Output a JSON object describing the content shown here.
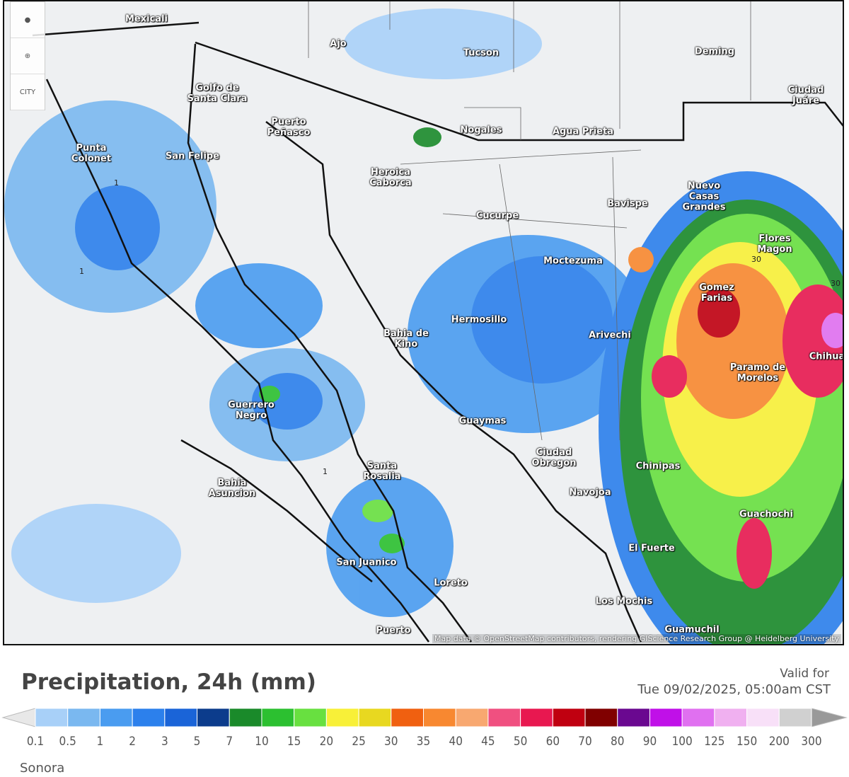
{
  "map": {
    "cities": [
      "Mexicali",
      "Ajo",
      "Tucson",
      "Deming",
      "Ciudad Juáre",
      "Golfo de Santa Clara",
      "Puerto Peñasco",
      "Nogales",
      "Agua Prieta",
      "Punta Colonet",
      "San Felipe",
      "Heroica Caborca",
      "Nuevo Casas Grandes",
      "Bavispe",
      "Cucurpe",
      "Flores Magon",
      "Moctezuma",
      "Gomez Farias",
      "Hermosillo",
      "Bahia de Kino",
      "Arivechi",
      "Chihua",
      "Paramo de Morelos",
      "Guerrero Negro",
      "Guaymas",
      "Ciudad Obregon",
      "Chinipas",
      "Santa Rosalia",
      "Bahia Asuncion",
      "Navojoa",
      "Guachochi",
      "El Fuerte",
      "San Juanico",
      "Loreto",
      "Los Mochis",
      "Puerto",
      "Guamuchil"
    ],
    "contour_labels": [
      "1",
      "1",
      "1",
      "30",
      "30"
    ],
    "city_button": "CITY",
    "attribution": "Map data © OpenStreetMap contributors, rendering GIScience Research Group @ Heidelberg University"
  },
  "legend": {
    "title": "Precipitation, 24h (mm)",
    "valid_label": "Valid for",
    "valid_time": "Tue 09/02/2025, 05:00am CST",
    "ticks": [
      0.1,
      0.5,
      1,
      2,
      3,
      5,
      7,
      10,
      15,
      20,
      25,
      30,
      35,
      40,
      45,
      50,
      60,
      70,
      80,
      90,
      100,
      125,
      150,
      200,
      300
    ],
    "colors": [
      "#a8d0f8",
      "#7ab8f0",
      "#4a9cf0",
      "#2c80ec",
      "#1a64d8",
      "#0c3c8c",
      "#1a8a2a",
      "#2cc030",
      "#68e040",
      "#f8f038",
      "#e8d820",
      "#f06010",
      "#f88830",
      "#f8a870",
      "#f05080",
      "#e81850",
      "#c00010",
      "#800000",
      "#6a0890",
      "#c010e8",
      "#e070f0",
      "#f0b0f0",
      "#f8e0f8",
      "#d0d0d0"
    ],
    "low_color": "#e8e8e8",
    "high_color": "#999999"
  },
  "footer": {
    "region": "Sonora"
  }
}
